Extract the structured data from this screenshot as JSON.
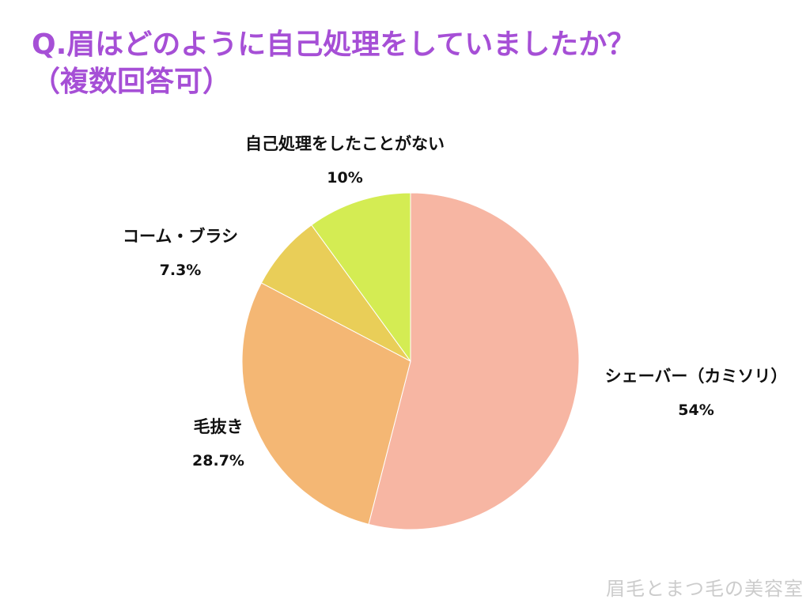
{
  "chart_data": {
    "type": "pie",
    "title": "Q.眉はどのように自己処理をしていましたか？\n（複数回答可）",
    "categories": [
      "シェーバー（カミソリ）",
      "毛抜き",
      "コーム・ブラシ",
      "自己処理をしたことがない"
    ],
    "values": [
      54,
      28.7,
      7.3,
      10
    ],
    "value_labels": [
      "54%",
      "28.7%",
      "7.3%",
      "10%"
    ],
    "colors": [
      "#f7b6a3",
      "#f4b774",
      "#e9ce58",
      "#d4ec53"
    ],
    "start": "12 o'clock",
    "direction": "clockwise",
    "legend": "none"
  },
  "watermark": "眉毛とまつ毛の美容室"
}
